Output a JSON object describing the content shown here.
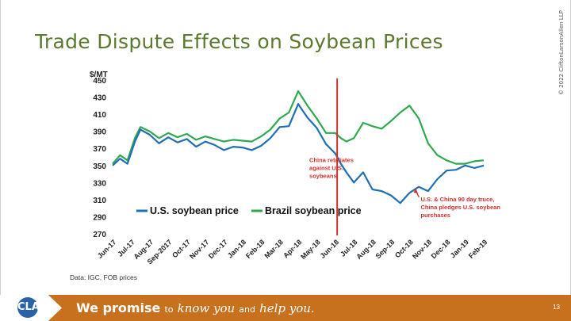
{
  "slide": {
    "title": "Trade Dispute Effects on Soybean Prices",
    "copyright": "© 2022 CliftonLarsonAllen LLP",
    "page_number": "13"
  },
  "footer": {
    "logo_text": "CLA",
    "promise_a": "We promise",
    "promise_b": "to",
    "promise_c": "know you",
    "promise_d": "and",
    "promise_e": "help you."
  },
  "chart_data": {
    "type": "line",
    "title": "",
    "ylabel": "$/MT",
    "ylim": [
      270,
      450
    ],
    "yticks": [
      270,
      290,
      310,
      330,
      350,
      370,
      390,
      410,
      430,
      450
    ],
    "x_range": [
      0,
      20
    ],
    "x_tick_positions": [
      0,
      1,
      2,
      3,
      4,
      5,
      6,
      7,
      8,
      9,
      10,
      11,
      12,
      13,
      14,
      15,
      16,
      17,
      18,
      19,
      20
    ],
    "categories": [
      "Jun-17",
      "Jul-17",
      "Aug-17",
      "Sep-2017",
      "Oct-17",
      "Nov-17",
      "Dec-17",
      "Jan-18",
      "Feb-18",
      "Mar-18",
      "Apr-18",
      "May-18",
      "Jun-18",
      "Jul-18",
      "Aug-18",
      "Sep-18",
      "Oct-18",
      "Nov-18",
      "Dec-18",
      "Jan-19",
      "Feb-19"
    ],
    "colors": {
      "us": "#1f6fb4",
      "brazil": "#2eaa4e",
      "event": "#d0312d",
      "annotation": "#d0312d"
    },
    "series": [
      {
        "name": "U.S. soybean price",
        "x": [
          0,
          0.4,
          0.8,
          1.2,
          1.5,
          2.0,
          2.5,
          3.0,
          3.5,
          4.0,
          4.5,
          5.0,
          5.5,
          6.0,
          6.5,
          7.0,
          7.5,
          8.0,
          8.5,
          9.0,
          9.5,
          10.0,
          10.5,
          11.0,
          11.5,
          12.0,
          12.3,
          12.6,
          13.0,
          13.5,
          14.0,
          14.5,
          15.0,
          15.5,
          16.0,
          16.5,
          17.0,
          17.5,
          18.0,
          18.5,
          19.0,
          19.5,
          20.0
        ],
        "values": [
          350,
          358,
          352,
          378,
          392,
          386,
          376,
          383,
          377,
          381,
          372,
          378,
          374,
          368,
          372,
          371,
          368,
          373,
          382,
          395,
          396,
          422,
          406,
          394,
          375,
          364,
          352,
          342,
          330,
          342,
          322,
          320,
          315,
          306,
          318,
          325,
          320,
          334,
          344,
          345,
          350,
          347,
          350
        ]
      },
      {
        "name": "Brazil soybean price",
        "x": [
          0,
          0.4,
          0.8,
          1.2,
          1.5,
          2.0,
          2.5,
          3.0,
          3.5,
          4.0,
          4.5,
          5.0,
          5.5,
          6.0,
          6.5,
          7.0,
          7.5,
          8.0,
          8.5,
          9.0,
          9.5,
          10.0,
          10.5,
          11.0,
          11.5,
          12.0,
          12.3,
          12.6,
          13.0,
          13.5,
          14.0,
          14.5,
          15.0,
          15.5,
          16.0,
          16.5,
          17.0,
          17.5,
          18.0,
          18.5,
          19.0,
          19.5,
          20.0
        ],
        "values": [
          352,
          362,
          356,
          382,
          395,
          390,
          382,
          388,
          383,
          387,
          380,
          384,
          381,
          378,
          380,
          379,
          378,
          384,
          392,
          405,
          412,
          437,
          420,
          405,
          388,
          388,
          382,
          378,
          382,
          400,
          396,
          393,
          402,
          412,
          420,
          405,
          376,
          362,
          356,
          352,
          352,
          355,
          356
        ]
      }
    ],
    "event_line": {
      "x": 12.1
    },
    "annotations": [
      {
        "text": [
          "China retaliates",
          "against U.S.",
          "soybeans"
        ],
        "x": 10.6,
        "y": 354
      },
      {
        "text": [
          "U.S. & China 90 day truce,",
          "China pledges U.S. soybean",
          "purchases"
        ],
        "x": 16.6,
        "y": 308,
        "arrow_to": {
          "x": 16.6,
          "y": 322
        }
      }
    ],
    "legend": {
      "placement": "bottom-left",
      "entries": [
        "U.S. soybean price",
        "Brazil soybean price"
      ]
    },
    "source": "Data: IGC, FOB prices",
    "grid": false
  }
}
